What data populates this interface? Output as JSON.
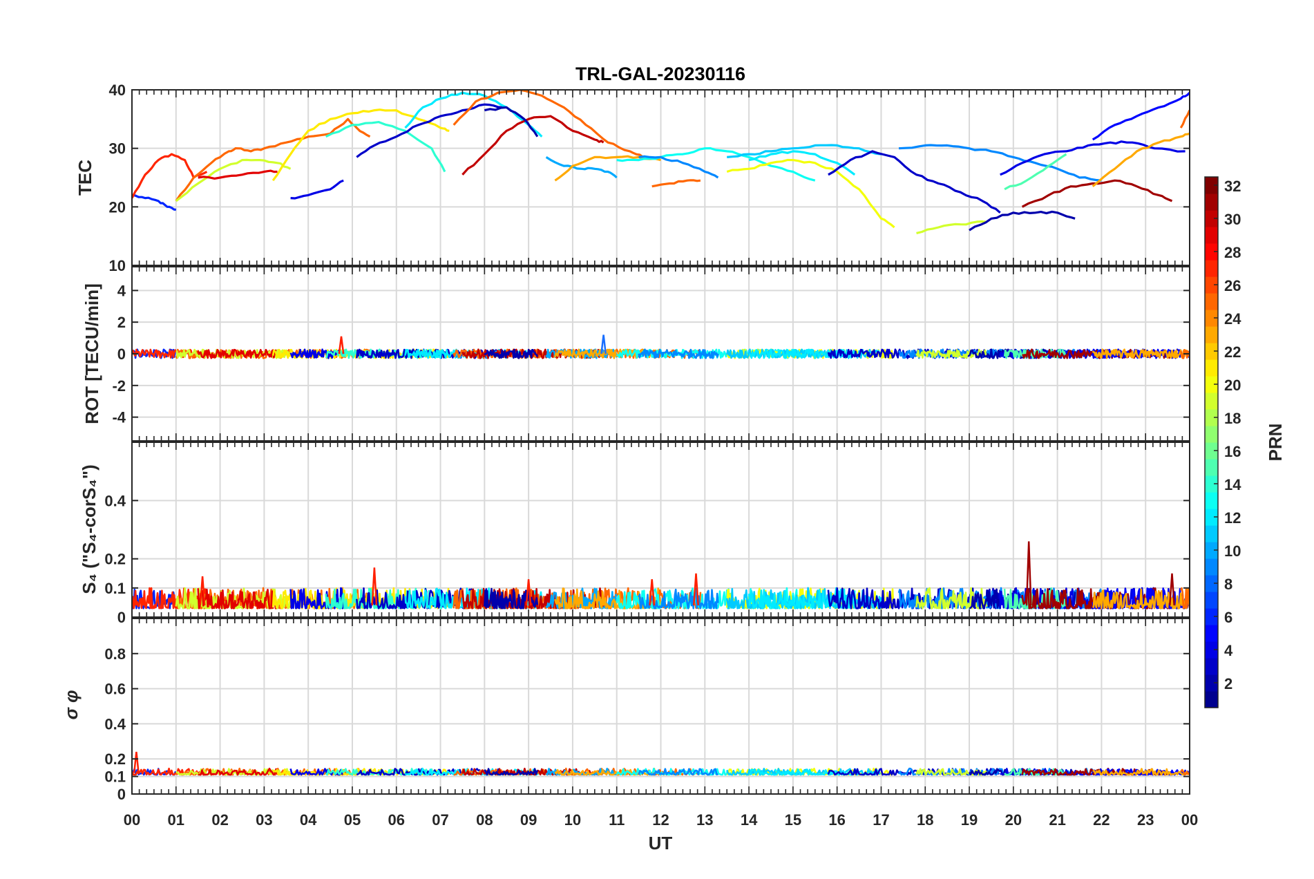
{
  "chart_data": {
    "type": "line",
    "title": "TRL-GAL-20230116",
    "xlabel": "UT",
    "x_ticks": [
      "00",
      "01",
      "02",
      "03",
      "04",
      "05",
      "06",
      "07",
      "08",
      "09",
      "10",
      "11",
      "12",
      "13",
      "14",
      "15",
      "16",
      "17",
      "18",
      "19",
      "20",
      "21",
      "22",
      "23",
      "00"
    ],
    "xlim": [
      0,
      24
    ],
    "colorbar": {
      "label": "PRN",
      "range": [
        1,
        32
      ],
      "ticks": [
        "2",
        "4",
        "6",
        "8",
        "10",
        "12",
        "14",
        "16",
        "18",
        "20",
        "22",
        "24",
        "26",
        "28",
        "30",
        "32"
      ],
      "colormap": [
        "#00008f",
        "#0000ff",
        "#0080ff",
        "#00ffff",
        "#80ff80",
        "#ffff00",
        "#ff8000",
        "#ff0000",
        "#800000"
      ]
    },
    "panels": [
      {
        "name": "tec",
        "ylabel": "TEC",
        "ylim": [
          10,
          40
        ],
        "yticks": [
          "10",
          "20",
          "30",
          "40"
        ],
        "series": [
          {
            "prn": 6,
            "x": [
              0.0,
              0.3,
              0.6,
              0.8,
              1.0
            ],
            "y": [
              22,
              21.5,
              21,
              20,
              19.5
            ]
          },
          {
            "prn": 27,
            "x": [
              0.0,
              0.3,
              0.6,
              0.9,
              1.2,
              1.4,
              1.7
            ],
            "y": [
              21.5,
              25.5,
              28,
              29,
              28,
              25,
              26
            ]
          },
          {
            "prn": 25,
            "x": [
              1.0,
              1.4,
              1.8,
              2.2,
              2.4,
              2.7,
              3.0,
              3.5,
              4.0,
              4.5,
              4.9,
              5.1,
              5.4
            ],
            "y": [
              21,
              25,
              27.5,
              29.5,
              30,
              29.5,
              30,
              31,
              32,
              32.5,
              35,
              33.5,
              32
            ]
          },
          {
            "prn": 19,
            "x": [
              1.0,
              1.5,
              2.0,
              2.5,
              2.9,
              3.3,
              3.6
            ],
            "y": [
              21,
              24,
              26.5,
              28,
              28,
              27.5,
              26.5
            ]
          },
          {
            "prn": 29,
            "x": [
              1.5,
              2.0,
              2.5,
              3.0,
              3.3
            ],
            "y": [
              25,
              25,
              25.5,
              26,
              26
            ]
          },
          {
            "prn": 21,
            "x": [
              3.2,
              3.6,
              4.0,
              4.5,
              5.0,
              5.5,
              6.0,
              6.5,
              7.0,
              7.2
            ],
            "y": [
              24.5,
              29,
              33,
              35,
              36,
              36.5,
              36.5,
              35,
              33.5,
              33
            ]
          },
          {
            "prn": 4,
            "x": [
              3.6,
              4.0,
              4.5,
              4.8
            ],
            "y": [
              21.5,
              22,
              23,
              24.5
            ]
          },
          {
            "prn": 14,
            "x": [
              4.4,
              5.0,
              5.6,
              6.2,
              6.8,
              7.1
            ],
            "y": [
              32,
              34,
              34.5,
              33,
              30,
              26
            ]
          },
          {
            "prn": 3,
            "x": [
              5.1,
              5.5,
              6.0,
              6.5,
              7.0,
              7.5,
              8.0,
              8.4
            ],
            "y": [
              28.5,
              30.5,
              32,
              34,
              35.5,
              36.5,
              37.5,
              37
            ]
          },
          {
            "prn": 12,
            "x": [
              6.2,
              6.6,
              7.0,
              7.5,
              8.0,
              8.5,
              9.0,
              9.3
            ],
            "y": [
              33.5,
              37,
              38.5,
              39.5,
              39,
              37,
              34,
              32
            ]
          },
          {
            "prn": 25,
            "x": [
              7.3,
              7.8,
              8.3,
              8.8,
              9.3,
              9.8,
              10.3,
              10.8,
              11.3,
              11.6
            ],
            "y": [
              34,
              38,
              39.5,
              40,
              39,
              37,
              34,
              31,
              29.5,
              28.5
            ]
          },
          {
            "prn": 30,
            "x": [
              7.5,
              8.0,
              8.5,
              9.0,
              9.5,
              10.0,
              10.5,
              10.7
            ],
            "y": [
              25.5,
              29,
              33,
              35,
              35.5,
              33,
              31.5,
              31
            ]
          },
          {
            "prn": 2,
            "x": [
              8.0,
              8.5,
              8.9,
              9.2
            ],
            "y": [
              36.5,
              37,
              35,
              32
            ]
          },
          {
            "prn": 10,
            "x": [
              9.4,
              9.8,
              10.2,
              10.5,
              10.8,
              11.0
            ],
            "y": [
              28.5,
              27,
              26.5,
              26.5,
              26,
              25
            ]
          },
          {
            "prn": 23,
            "x": [
              9.6,
              10.0,
              10.5,
              11.0,
              11.5,
              12.0
            ],
            "y": [
              24.5,
              27,
              28.5,
              28.5,
              28.5,
              28
            ]
          },
          {
            "prn": 25,
            "x": [
              11.8,
              12.2,
              12.6,
              12.9
            ],
            "y": [
              23.5,
              24,
              24.5,
              24.5
            ]
          },
          {
            "prn": 13,
            "x": [
              11.0,
              11.5,
              12.0,
              12.5,
              13.0,
              13.5,
              14.0,
              14.5,
              15.0,
              15.5
            ],
            "y": [
              28,
              28,
              28.5,
              29,
              30,
              29.5,
              28.5,
              27,
              26,
              24.5
            ]
          },
          {
            "prn": 9,
            "x": [
              11.5,
              12.0,
              12.5,
              13.0,
              13.3
            ],
            "y": [
              28.5,
              28.5,
              27.5,
              26,
              25
            ]
          },
          {
            "prn": 20,
            "x": [
              13.5,
              14.0,
              14.5,
              15.0,
              15.5,
              16.0,
              16.5,
              17.0,
              17.3
            ],
            "y": [
              26,
              26.5,
              27.5,
              28,
              27.5,
              26,
              23,
              18,
              16.5
            ]
          },
          {
            "prn": 11,
            "x": [
              13.5,
              14.0,
              14.5,
              15.0,
              15.5,
              16.0,
              16.5,
              17.0
            ],
            "y": [
              28.5,
              29,
              29.5,
              30,
              30.5,
              30.5,
              30,
              29
            ]
          },
          {
            "prn": 12,
            "x": [
              14.0,
              14.5,
              15.0,
              15.5,
              16.0,
              16.4
            ],
            "y": [
              28,
              29,
              29.5,
              29,
              27.5,
              25.5
            ]
          },
          {
            "prn": 3,
            "x": [
              15.8,
              16.3,
              16.8,
              17.3,
              17.8,
              18.3,
              18.8,
              19.3,
              19.7
            ],
            "y": [
              25.5,
              28,
              29.5,
              28.5,
              25.5,
              24,
              22.5,
              21,
              19
            ]
          },
          {
            "prn": 9,
            "x": [
              17.4,
              18.0,
              18.5,
              19.0,
              19.5,
              20.0,
              20.5,
              21.0,
              21.5,
              22.0
            ],
            "y": [
              30,
              30.5,
              30.5,
              30,
              29.5,
              28.5,
              27.5,
              26.5,
              25,
              24.5
            ]
          },
          {
            "prn": 19,
            "x": [
              17.8,
              18.3,
              18.8,
              19.3,
              19.4
            ],
            "y": [
              15.5,
              16.5,
              17,
              17.5,
              17.5
            ]
          },
          {
            "prn": 2,
            "x": [
              19.0,
              19.5,
              20.0,
              20.5,
              21.0,
              21.4
            ],
            "y": [
              16,
              18,
              19,
              19,
              19,
              18
            ]
          },
          {
            "prn": 4,
            "x": [
              19.7,
              20.2,
              20.7,
              21.2,
              21.7,
              22.2,
              22.7,
              23.2,
              23.9
            ],
            "y": [
              25.5,
              27.5,
              29,
              29.5,
              30.5,
              31,
              31,
              30,
              29.5
            ]
          },
          {
            "prn": 15,
            "x": [
              19.8,
              20.3,
              20.8,
              21.2
            ],
            "y": [
              23,
              24.5,
              27,
              29
            ]
          },
          {
            "prn": 31,
            "x": [
              20.2,
              20.8,
              21.3,
              21.8,
              22.3,
              22.8,
              23.3,
              23.6
            ],
            "y": [
              20,
              22,
              23.5,
              24,
              24.5,
              23.5,
              22,
              21
            ]
          },
          {
            "prn": 5,
            "x": [
              21.8,
              22.3,
              22.8,
              23.3,
              23.8,
              24.0
            ],
            "y": [
              31.5,
              34,
              35.5,
              37,
              38.5,
              39.5
            ]
          },
          {
            "prn": 23,
            "x": [
              21.8,
              22.3,
              22.8,
              23.3,
              23.8,
              24.0
            ],
            "y": [
              23.5,
              26.5,
              29.5,
              31,
              32,
              32.5
            ]
          },
          {
            "prn": 25,
            "x": [
              23.8,
              24.0
            ],
            "y": [
              33.5,
              36.5
            ]
          }
        ]
      },
      {
        "name": "rot",
        "ylabel": "ROT [TECU/min]",
        "ylim": [
          -5.5,
          5.5
        ],
        "yticks": [
          "-4",
          "-2",
          "0",
          "2",
          "4"
        ],
        "spikes": [
          {
            "x": 4.75,
            "y": 1.1
          },
          {
            "x": 10.7,
            "y": 1.2
          }
        ]
      },
      {
        "name": "s4",
        "ylabel": "S₄ (\"S₄-corS₄\")",
        "ylim": [
          0,
          0.6
        ],
        "yticks": [
          "0",
          "0.1",
          "0.2",
          "0.4"
        ],
        "baseline": 0.04,
        "spikes": [
          {
            "x": 1.6,
            "y": 0.14
          },
          {
            "x": 5.5,
            "y": 0.17
          },
          {
            "x": 9.0,
            "y": 0.13
          },
          {
            "x": 11.8,
            "y": 0.13
          },
          {
            "x": 12.8,
            "y": 0.15
          },
          {
            "x": 20.35,
            "y": 0.26
          },
          {
            "x": 23.6,
            "y": 0.15
          }
        ]
      },
      {
        "name": "sigma_phi",
        "ylabel": "σ φ",
        "ylim": [
          0,
          1
        ],
        "yticks": [
          "0",
          "0.1",
          "0.2",
          "0.4",
          "0.6",
          "0.8"
        ],
        "baseline": 0.12,
        "spikes": [
          {
            "x": 0.1,
            "y": 0.24
          }
        ]
      }
    ]
  }
}
